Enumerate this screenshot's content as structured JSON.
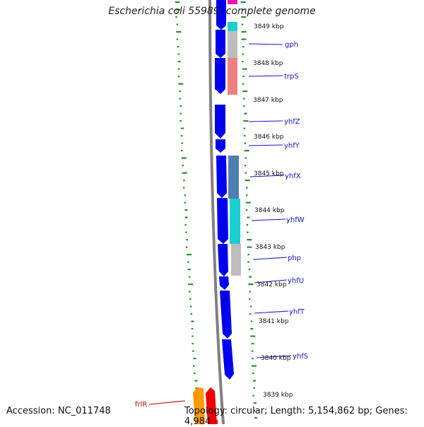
{
  "title": "Escherichia coli 55989, complete genome",
  "footer": {
    "accession": "Accession: NC_011748",
    "topology": "Topology: circular; Length: 5,154,862 bp; Genes: 4,984"
  },
  "ticks": [
    "3849 kbp",
    "3848 kbp",
    "3847 kbp",
    "3846 kbp",
    "3845 kbp",
    "3844 kbp",
    "3843 kbp",
    "3842 kbp",
    "3841 kbp",
    "3840 kbp",
    "3839 kbp"
  ],
  "genes": [
    "gph",
    "trpS",
    "yhfZ",
    "yhfY",
    "yhfX",
    "yhfW",
    "php",
    "yhfU",
    "yhfT",
    "yhfS",
    "frlR"
  ],
  "colors": {
    "forward_cds": "#0000ee",
    "backbone": "#808080",
    "gc_skew": "#2e8b2e",
    "cog_cyan": "#1ccfcf",
    "cog_gray": "#bdbdbd",
    "cog_salmon": "#f08080",
    "cog_steelblue": "#4f7fb0",
    "cog_magenta": "#ee11aa",
    "reverse_orange": "#ff9900",
    "reverse_red": "#ee0000",
    "label_blue": "#1414c8",
    "label_red": "#c00000"
  }
}
